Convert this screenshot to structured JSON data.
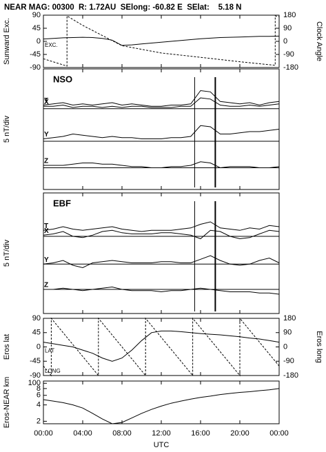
{
  "header": {
    "title": "NEAR MAG: 00300  R: 1.72AU  SElong: -60.82 E  SElat:    5.18 N"
  },
  "x_axis": {
    "xlim": [
      0,
      24
    ],
    "xlabel": "UTC",
    "xticks": [
      {
        "value": 0,
        "label": "00:00"
      },
      {
        "value": 4,
        "label": "04:00"
      },
      {
        "value": 8,
        "label": "08:00"
      },
      {
        "value": 12,
        "label": "12:00"
      },
      {
        "value": 16,
        "label": "16:00"
      },
      {
        "value": 20,
        "label": "20:00"
      },
      {
        "value": 24,
        "label": "00:00"
      }
    ]
  },
  "chart_data": [
    {
      "type": "line",
      "ylabel": "Sunward Exc.",
      "y2label": "Clock Angle",
      "ylim": [
        -90,
        90
      ],
      "yticks": [
        90,
        45,
        0,
        -45,
        -90
      ],
      "y2lim": [
        -180,
        180
      ],
      "y2ticks": [
        180,
        90,
        0,
        -90,
        -180
      ],
      "annotations": [
        "EXC."
      ],
      "x": [
        0,
        1,
        2,
        3,
        4,
        5,
        6,
        7,
        8,
        9,
        10,
        11,
        12,
        13,
        14,
        15,
        16,
        17,
        18,
        19,
        20,
        21,
        22,
        23,
        24
      ],
      "series": [
        {
          "color": "#000",
          "values": [
            8,
            10,
            12,
            13,
            14,
            13,
            10,
            4,
            -14,
            -12,
            -9,
            -6,
            -3,
            0,
            3,
            6,
            9,
            11,
            13,
            14,
            15,
            16,
            17,
            17,
            18
          ]
        },
        {
          "color": "#000",
          "dash": true,
          "axis": "y2",
          "x": [
            0,
            2.4,
            2.4,
            4,
            6,
            8,
            12,
            16,
            20,
            23.6,
            23.6,
            24
          ],
          "values": [
            -120,
            -170,
            175,
            110,
            40,
            -30,
            -80,
            -110,
            -140,
            -165,
            175,
            170
          ]
        }
      ]
    },
    {
      "type": "line",
      "ylabel": "5 nT/div",
      "label": "NSO",
      "ylim": [
        0,
        10
      ],
      "baselines": [
        6.7,
        4.0,
        1.8
      ],
      "vlines": [
        15.4,
        17.5
      ],
      "x": [
        0,
        1,
        2,
        3,
        4,
        5,
        6,
        7,
        8,
        9,
        10,
        11,
        12,
        13,
        14,
        15,
        16,
        17,
        18,
        19,
        20,
        21,
        22,
        23,
        24
      ],
      "series": [
        {
          "name": "T",
          "color": "#000",
          "values": [
            7.0,
            7.1,
            7.2,
            7.0,
            7.1,
            7.0,
            7.1,
            7.2,
            7.0,
            7.1,
            7.0,
            6.9,
            6.9,
            7.0,
            7.0,
            7.1,
            8.2,
            8.1,
            7.3,
            7.2,
            7.1,
            7.2,
            7.0,
            7.2,
            7.3
          ]
        },
        {
          "name": "X",
          "color": "#000",
          "values": [
            6.9,
            6.9,
            7.0,
            6.8,
            6.9,
            6.9,
            6.8,
            6.9,
            6.8,
            6.9,
            6.9,
            6.8,
            6.8,
            6.8,
            6.9,
            6.9,
            7.6,
            7.5,
            7.0,
            6.9,
            6.9,
            7.0,
            6.9,
            7.0,
            7.1
          ]
        },
        {
          "name": "Y",
          "color": "#000",
          "values": [
            4.2,
            4.3,
            4.4,
            4.6,
            4.5,
            4.4,
            4.3,
            4.4,
            4.3,
            4.3,
            4.2,
            4.2,
            4.2,
            4.3,
            4.3,
            4.4,
            5.3,
            5.2,
            4.6,
            4.6,
            4.7,
            4.8,
            4.8,
            4.9,
            5.0
          ]
        },
        {
          "name": "Z",
          "color": "#000",
          "values": [
            2.0,
            2.0,
            2.0,
            2.1,
            2.2,
            2.2,
            2.1,
            2.1,
            2.0,
            1.9,
            1.9,
            1.8,
            1.8,
            1.9,
            1.9,
            2.0,
            2.3,
            2.2,
            1.8,
            1.9,
            1.9,
            1.9,
            1.8,
            1.8,
            1.9
          ]
        }
      ]
    },
    {
      "type": "line",
      "ylabel": "5 nT/div",
      "label": "EBF",
      "ylim": [
        0,
        10
      ],
      "baselines": [
        6.4,
        4.1,
        2.0
      ],
      "vlines": [
        15.4,
        17.5
      ],
      "x": [
        0,
        1,
        2,
        3,
        4,
        5,
        6,
        7,
        8,
        9,
        10,
        11,
        12,
        13,
        14,
        15,
        16,
        17,
        18,
        19,
        20,
        21,
        22,
        23,
        24
      ],
      "series": [
        {
          "name": "T",
          "color": "#000",
          "values": [
            6.9,
            7.0,
            7.2,
            7.0,
            6.9,
            7.0,
            7.1,
            7.2,
            7.0,
            6.9,
            6.8,
            6.9,
            6.9,
            6.9,
            7.0,
            7.1,
            7.4,
            7.6,
            7.1,
            7.0,
            6.9,
            7.1,
            7.0,
            7.3,
            7.2
          ]
        },
        {
          "name": "X",
          "color": "#000",
          "values": [
            6.5,
            6.6,
            6.8,
            6.4,
            6.3,
            6.5,
            6.8,
            6.9,
            6.7,
            6.6,
            6.6,
            6.6,
            6.7,
            6.7,
            6.6,
            6.5,
            6.2,
            6.9,
            6.8,
            6.4,
            6.2,
            6.3,
            6.6,
            6.9,
            6.8
          ]
        },
        {
          "name": "Y",
          "color": "#000",
          "values": [
            4.1,
            4.2,
            4.4,
            4.0,
            3.8,
            4.2,
            4.3,
            4.4,
            4.3,
            4.2,
            4.2,
            4.2,
            4.3,
            4.3,
            4.2,
            4.2,
            4.5,
            4.8,
            4.4,
            4.1,
            4.0,
            4.1,
            4.4,
            4.6,
            4.2
          ]
        },
        {
          "name": "Z",
          "color": "#000",
          "values": [
            2.0,
            2.0,
            2.1,
            2.0,
            1.9,
            2.0,
            2.1,
            2.2,
            2.0,
            1.9,
            1.9,
            1.9,
            1.8,
            1.9,
            1.9,
            2.0,
            2.1,
            2.0,
            1.9,
            1.8,
            1.8,
            1.8,
            1.7,
            1.7,
            1.6
          ]
        }
      ]
    },
    {
      "type": "line",
      "ylabel": "Eros lat",
      "y2label": "Eros long",
      "ylim": [
        -90,
        90
      ],
      "yticks": [
        90,
        45,
        0,
        -45,
        -90
      ],
      "y2lim": [
        -180,
        180
      ],
      "y2ticks": [
        180,
        90,
        0,
        -90,
        -180
      ],
      "annotations": [
        "LAT",
        "LONG"
      ],
      "x": [
        0,
        1,
        2,
        3,
        4,
        5,
        6,
        7,
        8,
        9,
        10,
        11,
        12,
        13,
        14,
        15,
        16,
        17,
        18,
        19,
        20,
        21,
        22,
        23,
        24
      ],
      "series": [
        {
          "color": "#000",
          "values": [
            15,
            10,
            5,
            0,
            -10,
            -20,
            -35,
            -45,
            -35,
            -10,
            20,
            45,
            50,
            50,
            48,
            45,
            42,
            40,
            38,
            35,
            32,
            28,
            25,
            20,
            15
          ]
        },
        {
          "color": "#000",
          "dash": true,
          "axis": "y2",
          "x": [
            0,
            0.8,
            0.8,
            5.6,
            5.6,
            10.4,
            10.4,
            15.2,
            15.2,
            20.0,
            20.0,
            24
          ],
          "values": [
            -120,
            -180,
            180,
            -180,
            180,
            -180,
            180,
            -180,
            180,
            -180,
            180,
            -120
          ]
        }
      ]
    },
    {
      "type": "line",
      "ylabel": "Eros-NEAR km",
      "log": true,
      "ylim": [
        18,
        110
      ],
      "yticks": [
        100,
        {
          "value": 80,
          "label": "8"
        },
        {
          "value": 60,
          "label": "6"
        },
        {
          "value": 40,
          "label": "4"
        },
        {
          "value": 20,
          "label": "2"
        }
      ],
      "x": [
        0,
        1,
        2,
        3,
        4,
        5,
        6,
        7,
        8,
        9,
        10,
        11,
        12,
        13,
        14,
        15,
        16,
        17,
        18,
        19,
        20,
        21,
        22,
        23,
        24
      ],
      "series": [
        {
          "color": "#000",
          "values": [
            50,
            47,
            44,
            40,
            35,
            28,
            22,
            18,
            19,
            23,
            28,
            33,
            38,
            43,
            47,
            51,
            55,
            58,
            62,
            65,
            68,
            70,
            73,
            76,
            80
          ]
        }
      ]
    }
  ]
}
